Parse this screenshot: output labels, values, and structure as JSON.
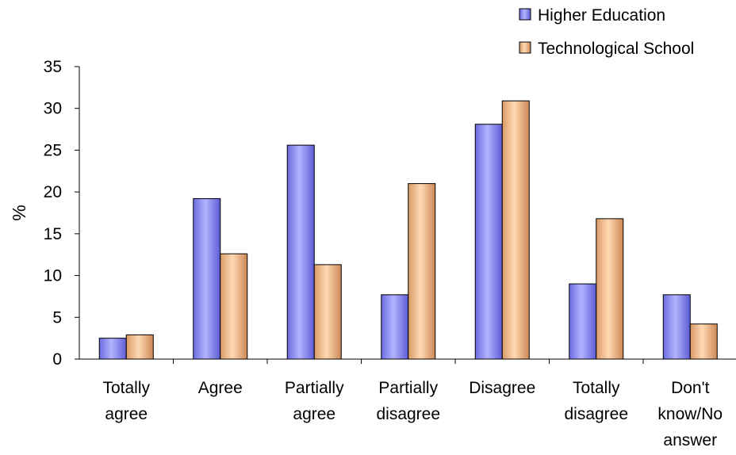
{
  "chart_data": {
    "type": "bar",
    "title": "",
    "xlabel": "",
    "ylabel": "%",
    "ylim": [
      0,
      35
    ],
    "yticks": [
      0,
      5,
      10,
      15,
      20,
      25,
      30,
      35
    ],
    "grid": false,
    "legend_position": "top-right",
    "categories": [
      [
        "Totally",
        "agree"
      ],
      [
        "Agree"
      ],
      [
        "Partially",
        "agree"
      ],
      [
        "Partially",
        "disagree"
      ],
      [
        "Disagree"
      ],
      [
        "Totally",
        "disagree"
      ],
      [
        "Don't",
        "know/No",
        "answer"
      ]
    ],
    "series": [
      {
        "name": "Higher Education",
        "color": "#9999ff",
        "values": [
          2.5,
          19.2,
          25.6,
          7.7,
          28.1,
          9.0,
          7.7
        ]
      },
      {
        "name": "Technological School",
        "color": "#ffcc99",
        "values": [
          2.9,
          12.6,
          11.3,
          21.0,
          30.9,
          16.8,
          4.2
        ]
      }
    ]
  }
}
